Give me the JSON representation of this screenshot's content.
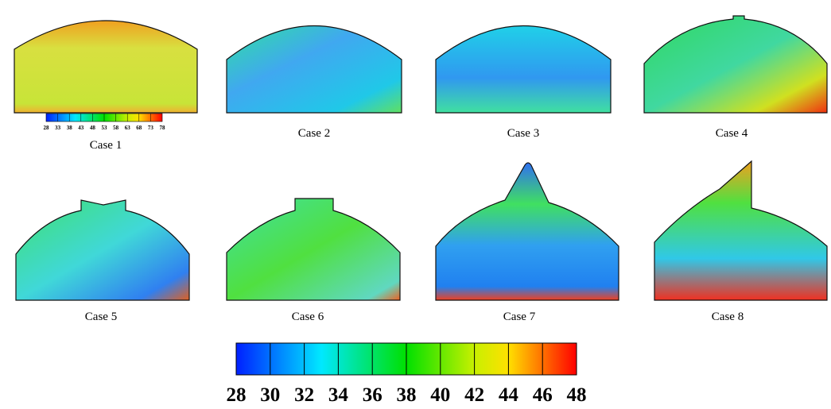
{
  "cases": [
    "Case 1",
    "Case 2",
    "Case 3",
    "Case 4",
    "Case 5",
    "Case 6",
    "Case 7",
    "Case 8"
  ],
  "legend_small": {
    "ticks": [
      28,
      33,
      38,
      43,
      48,
      53,
      58,
      63,
      68,
      73,
      78
    ]
  },
  "legend_main": {
    "ticks": [
      28,
      30,
      32,
      34,
      36,
      38,
      40,
      42,
      44,
      46,
      48
    ]
  }
}
